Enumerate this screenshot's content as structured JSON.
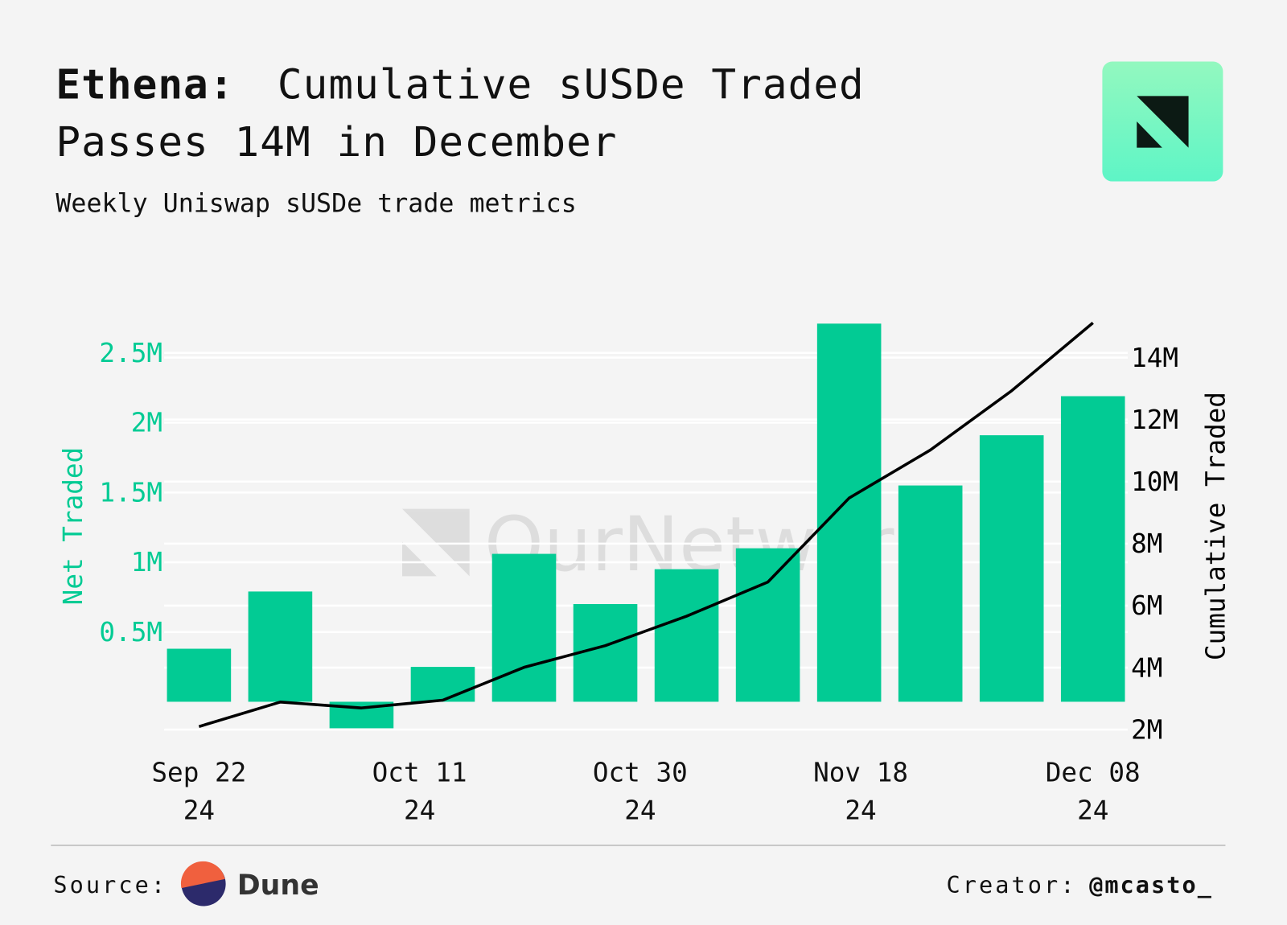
{
  "chart_data": {
    "type": "bar",
    "title_label": "Ethena:",
    "title": [
      "Cumulative sUSDe Traded",
      "Passes 14M in December"
    ],
    "subtitle": "Weekly Uniswap sUSDe trade metrics",
    "watermark": "OurNetwork",
    "x": [
      "2024-09-22",
      "2024-09-29",
      "2024-10-06",
      "2024-10-13",
      "2024-10-20",
      "2024-10-27",
      "2024-11-03",
      "2024-11-10",
      "2024-11-17",
      "2024-11-24",
      "2024-12-01",
      "2024-12-08"
    ],
    "xlim": [
      "2024-09-19",
      "2024-12-11"
    ],
    "xticks": [
      {
        "value": "2024-09-22",
        "label": [
          "Sep 22",
          "24"
        ]
      },
      {
        "value": "2024-10-11",
        "label": [
          "Oct 11",
          "24"
        ]
      },
      {
        "value": "2024-10-30",
        "label": [
          "Oct 30",
          "24"
        ]
      },
      {
        "value": "2024-11-18",
        "label": [
          "Nov 18",
          "24"
        ]
      },
      {
        "value": "2024-12-08",
        "label": [
          "Dec 08",
          "24"
        ]
      }
    ],
    "series": [
      {
        "name": "Net Traded",
        "type": "bar",
        "color": "#02cb94",
        "values": [
          380000,
          790000,
          -190000,
          250000,
          1060000,
          700000,
          950000,
          1100000,
          2710000,
          1550000,
          1910000,
          2190000
        ]
      },
      {
        "name": "Cumulative Traded",
        "type": "line",
        "axis": "y2",
        "color": "#000000",
        "values": [
          2100000,
          2890000,
          2700000,
          2950000,
          4010000,
          4710000,
          5660000,
          6760000,
          9470000,
          11020000,
          12930000,
          15120000
        ]
      }
    ],
    "ylim": [
      -200000,
      2800000
    ],
    "yticks": [
      {
        "value": 500000,
        "label": "0.5M"
      },
      {
        "value": 1000000,
        "label": "1M"
      },
      {
        "value": 1500000,
        "label": "1.5M"
      },
      {
        "value": 2000000,
        "label": "2M"
      },
      {
        "value": 2500000,
        "label": "2.5M"
      }
    ],
    "y2lim": [
      2000000,
      15500000
    ],
    "y2ticks": [
      {
        "value": 2000000,
        "label": "2M"
      },
      {
        "value": 4000000,
        "label": "4M"
      },
      {
        "value": 6000000,
        "label": "6M"
      },
      {
        "value": 8000000,
        "label": "8M"
      },
      {
        "value": 10000000,
        "label": "10M"
      },
      {
        "value": 12000000,
        "label": "12M"
      },
      {
        "value": 14000000,
        "label": "14M"
      }
    ],
    "grid": true,
    "source_label": "Source:",
    "source": "Dune",
    "creator_label": "Creator:",
    "creator": "@mcasto_"
  }
}
